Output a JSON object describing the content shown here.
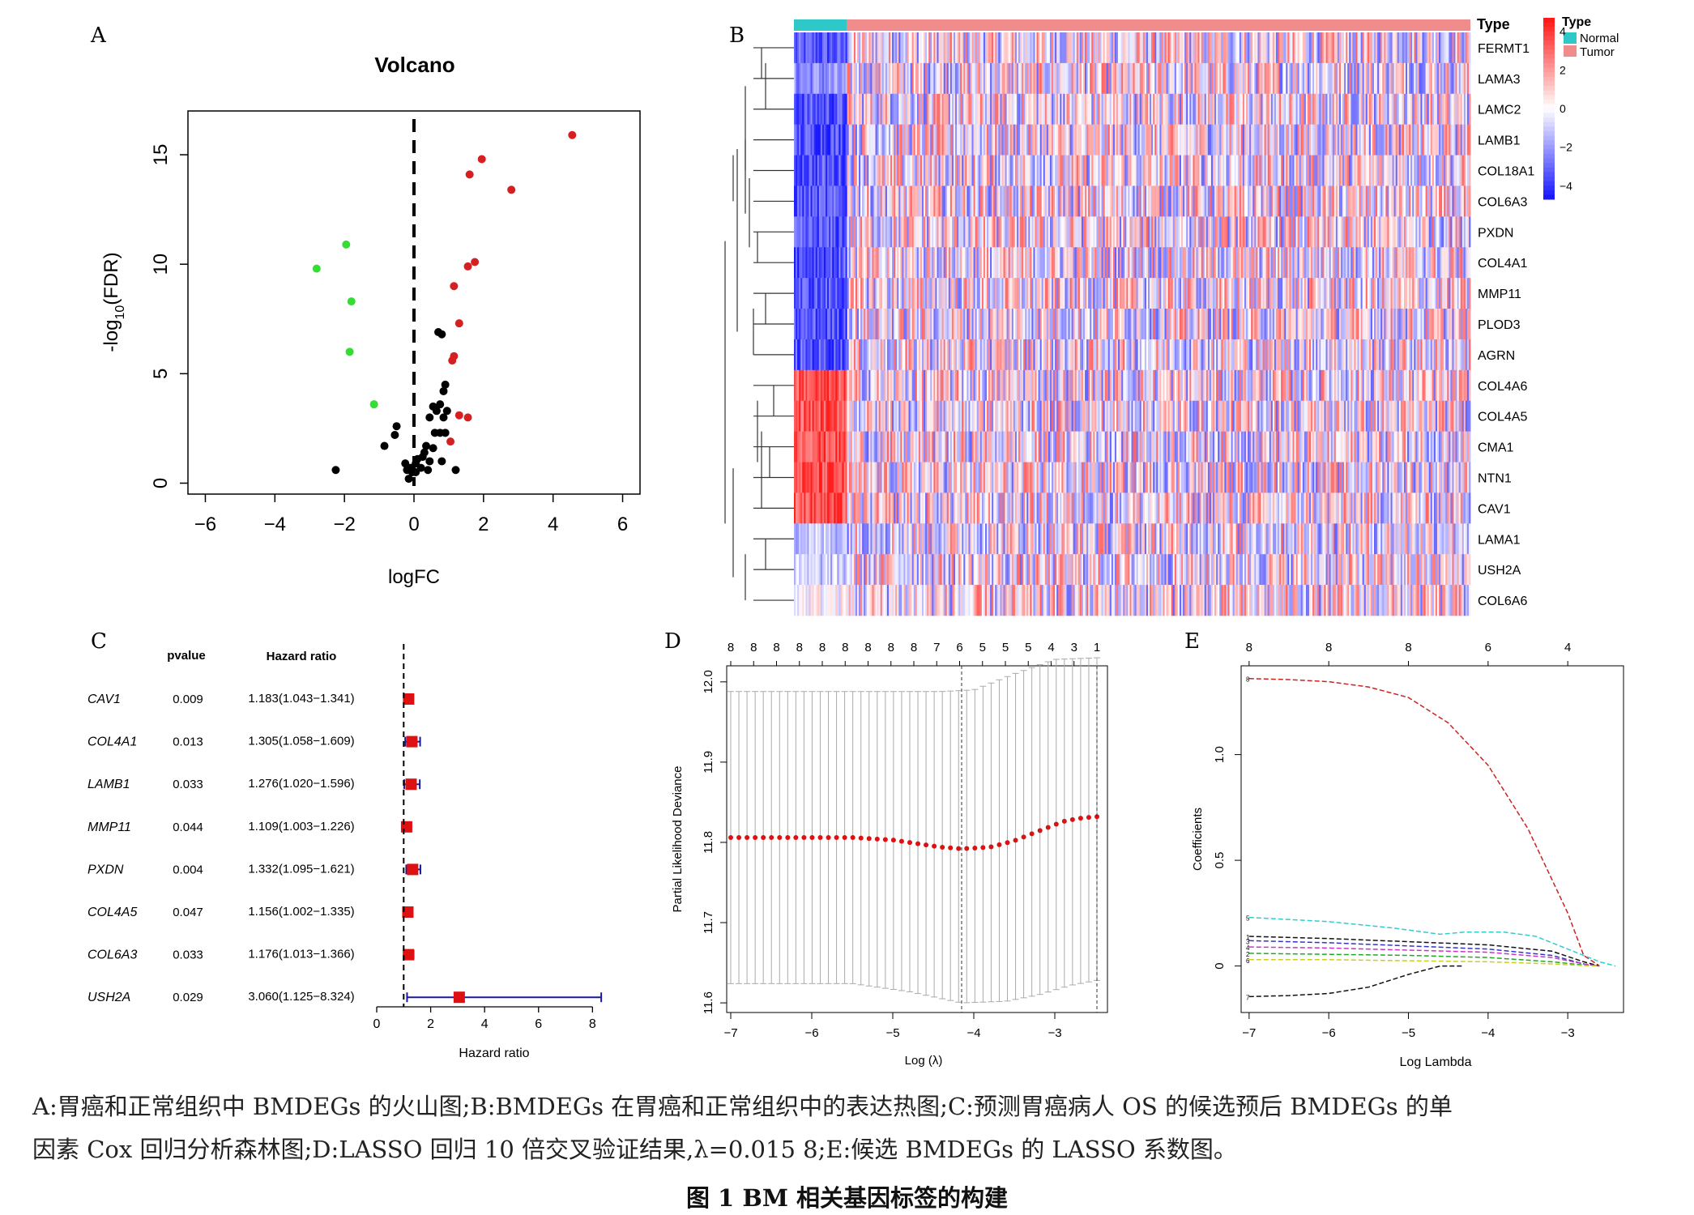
{
  "panels": {
    "A": "A",
    "B": "B",
    "C": "C",
    "D": "D",
    "E": "E"
  },
  "caption": {
    "line1": "A:胃癌和正常组织中 BMDEGs 的火山图;B:BMDEGs 在胃癌和正常组织中的表达热图;C:预测胃癌病人 OS 的候选预后 BMDEGs 的单",
    "line2": "因素 Cox 回归分析森林图;D:LASSO 回归 10 倍交叉验证结果,λ=0.015 8;E:候选 BMDEGs 的 LASSO 系数图。",
    "title": "图 1   BM 相关基因标签的构建"
  },
  "colors": {
    "up": "#d42020",
    "down": "#33dd33",
    "ns": "#000000",
    "normal": "#2ec8c8",
    "tumor": "#f08c8c",
    "heat_high": "#ff1a1a",
    "heat_low": "#1a1aff",
    "cvpoint": "#dd1111",
    "forest_box": "#dd1111",
    "forest_line": "#1a1a99"
  },
  "chart_data": [
    {
      "id": "A",
      "type": "scatter",
      "title": "Volcano",
      "xlabel": "logFC",
      "ylabel": "-log10(FDR)",
      "ylabel_parts": {
        "pre": "-log",
        "sub": "10",
        "post": "(FDR)"
      },
      "xlim": [
        -6.5,
        6.5
      ],
      "ylim": [
        -0.5,
        17
      ],
      "xticks": [
        -6,
        -4,
        -2,
        0,
        2,
        4,
        6
      ],
      "yticks": [
        0,
        5,
        10,
        15
      ],
      "xtick_labels": [
        "−6",
        "−4",
        "−2",
        "0",
        "2",
        "4",
        "6"
      ],
      "ytick_labels": [
        "0",
        "5",
        "10",
        "15"
      ],
      "vline": 0,
      "series": [
        {
          "group": "up",
          "points": [
            [
              4.55,
              15.9
            ],
            [
              1.95,
              14.8
            ],
            [
              1.6,
              14.1
            ],
            [
              2.8,
              13.4
            ],
            [
              1.75,
              10.1
            ],
            [
              1.55,
              9.9
            ],
            [
              1.15,
              9.0
            ],
            [
              1.3,
              7.3
            ],
            [
              1.15,
              5.8
            ],
            [
              1.1,
              5.6
            ],
            [
              1.3,
              3.1
            ],
            [
              1.55,
              3.0
            ],
            [
              1.05,
              1.9
            ]
          ]
        },
        {
          "group": "down",
          "points": [
            [
              -1.95,
              10.9
            ],
            [
              -2.8,
              9.8
            ],
            [
              -1.8,
              8.3
            ],
            [
              -1.85,
              6.0
            ],
            [
              -1.15,
              3.6
            ]
          ]
        },
        {
          "group": "ns",
          "points": [
            [
              0.7,
              6.9
            ],
            [
              0.8,
              6.8
            ],
            [
              0.9,
              4.5
            ],
            [
              0.85,
              4.2
            ],
            [
              0.75,
              3.6
            ],
            [
              0.55,
              3.5
            ],
            [
              0.65,
              3.3
            ],
            [
              0.95,
              3.3
            ],
            [
              0.45,
              3.0
            ],
            [
              0.85,
              3.0
            ],
            [
              -0.5,
              2.6
            ],
            [
              -0.55,
              2.2
            ],
            [
              0.6,
              2.3
            ],
            [
              0.75,
              2.3
            ],
            [
              0.9,
              2.3
            ],
            [
              -0.85,
              1.7
            ],
            [
              0.35,
              1.7
            ],
            [
              0.55,
              1.6
            ],
            [
              0.3,
              1.4
            ],
            [
              0.25,
              1.2
            ],
            [
              0.1,
              1.1
            ],
            [
              0.45,
              1.0
            ],
            [
              0.8,
              1.0
            ],
            [
              -0.25,
              0.9
            ],
            [
              0.05,
              0.9
            ],
            [
              -0.1,
              0.7
            ],
            [
              0.2,
              0.7
            ],
            [
              -0.2,
              0.6
            ],
            [
              0.4,
              0.6
            ],
            [
              -0.05,
              0.5
            ],
            [
              0.05,
              0.5
            ],
            [
              1.2,
              0.6
            ],
            [
              -2.25,
              0.6
            ],
            [
              -0.15,
              0.2
            ]
          ]
        }
      ]
    },
    {
      "id": "B",
      "type": "heatmap",
      "genes": [
        "FERMT1",
        "LAMA3",
        "LAMC2",
        "LAMB1",
        "COL18A1",
        "COL6A3",
        "PXDN",
        "COL4A1",
        "MMP11",
        "PLOD3",
        "AGRN",
        "COL4A6",
        "COL4A5",
        "CMA1",
        "NTN1",
        "CAV1",
        "LAMA1",
        "USH2A",
        "COL6A6"
      ],
      "annotation_title": "Type",
      "legend_title": "Type",
      "legend": [
        "Normal",
        "Tumor"
      ],
      "scale_ticks": [
        4,
        2,
        0,
        -2,
        -4
      ],
      "scale_tick_labels": [
        "4",
        "2",
        "0",
        "−2",
        "−4"
      ],
      "n_normal": 32,
      "n_tumor": 375,
      "normal_bias": [
        -3,
        -2,
        -3,
        -3,
        -3,
        -3,
        -3,
        -3,
        -3,
        -3,
        -3,
        3,
        3,
        3,
        3,
        3,
        -1,
        -1,
        0
      ]
    },
    {
      "id": "C",
      "type": "forest",
      "header_pvalue": "pvalue",
      "header_hr": "Hazard ratio",
      "xlabel": "Hazard ratio",
      "xlim": [
        0,
        8.5
      ],
      "xticks": [
        0,
        2,
        4,
        6,
        8
      ],
      "xtick_labels": [
        "0",
        "2",
        "4",
        "6",
        "8"
      ],
      "ref": 1,
      "rows": [
        {
          "gene": "CAV1",
          "pvalue": "0.009",
          "hr_text": "1.183(1.043−1.341)",
          "hr": 1.183,
          "lo": 1.043,
          "hi": 1.341
        },
        {
          "gene": "COL4A1",
          "pvalue": "0.013",
          "hr_text": "1.305(1.058−1.609)",
          "hr": 1.305,
          "lo": 1.058,
          "hi": 1.609
        },
        {
          "gene": "LAMB1",
          "pvalue": "0.033",
          "hr_text": "1.276(1.020−1.596)",
          "hr": 1.276,
          "lo": 1.02,
          "hi": 1.596
        },
        {
          "gene": "MMP11",
          "pvalue": "0.044",
          "hr_text": "1.109(1.003−1.226)",
          "hr": 1.109,
          "lo": 1.003,
          "hi": 1.226
        },
        {
          "gene": "PXDN",
          "pvalue": "0.004",
          "hr_text": "1.332(1.095−1.621)",
          "hr": 1.332,
          "lo": 1.095,
          "hi": 1.621
        },
        {
          "gene": "COL4A5",
          "pvalue": "0.047",
          "hr_text": "1.156(1.002−1.335)",
          "hr": 1.156,
          "lo": 1.002,
          "hi": 1.335
        },
        {
          "gene": "COL6A3",
          "pvalue": "0.033",
          "hr_text": "1.176(1.013−1.366)",
          "hr": 1.176,
          "lo": 1.013,
          "hi": 1.366
        },
        {
          "gene": "USH2A",
          "pvalue": "0.029",
          "hr_text": "3.060(1.125−8.324)",
          "hr": 3.06,
          "lo": 1.125,
          "hi": 8.324
        }
      ]
    },
    {
      "id": "D",
      "type": "line",
      "xlabel": "Log (λ)",
      "ylabel": "Partial Likelihood Deviance",
      "xlim": [
        -7.05,
        -2.35
      ],
      "ylim": [
        11.588,
        12.02
      ],
      "xticks": [
        -7,
        -6,
        -5,
        -4,
        -3
      ],
      "xtick_labels": [
        "−7",
        "−6",
        "−5",
        "−4",
        "−3"
      ],
      "yticks": [
        11.6,
        11.7,
        11.8,
        11.9,
        12.0
      ],
      "ytick_labels": [
        "11.6",
        "11.7",
        "11.8",
        "11.9",
        "12.0"
      ],
      "top_labels": [
        "8",
        "8",
        "8",
        "8",
        "8",
        "8",
        "8",
        "8",
        "8",
        "7",
        "6",
        "5",
        "5",
        "5",
        "4",
        "3",
        "1"
      ],
      "vlines": [
        -4.15,
        -2.48
      ],
      "x_range": [
        -7.0,
        -2.48
      ],
      "n_points": 46,
      "curve": [
        [
          -7.0,
          11.806
        ],
        [
          -5.5,
          11.806
        ],
        [
          -5.0,
          11.803
        ],
        [
          -4.4,
          11.794
        ],
        [
          -4.15,
          11.792
        ],
        [
          -3.8,
          11.794
        ],
        [
          -3.5,
          11.802
        ],
        [
          -3.2,
          11.814
        ],
        [
          -2.9,
          11.826
        ],
        [
          -2.7,
          11.83
        ],
        [
          -2.48,
          11.832
        ]
      ],
      "upper": [
        [
          -7.0,
          11.988
        ],
        [
          -4.4,
          11.988
        ],
        [
          -4.0,
          11.99
        ],
        [
          -3.5,
          12.01
        ],
        [
          -3.0,
          12.028
        ],
        [
          -2.48,
          12.03
        ]
      ],
      "lower": [
        [
          -7.0,
          11.624
        ],
        [
          -5.5,
          11.624
        ],
        [
          -4.8,
          11.614
        ],
        [
          -4.15,
          11.6
        ],
        [
          -3.6,
          11.602
        ],
        [
          -3.2,
          11.61
        ],
        [
          -2.8,
          11.622
        ],
        [
          -2.48,
          11.628
        ]
      ]
    },
    {
      "id": "E",
      "type": "line",
      "xlabel": "Log Lambda",
      "ylabel": "Coefficients",
      "xlim": [
        -7.1,
        -2.3
      ],
      "ylim": [
        -0.22,
        1.42
      ],
      "xticks": [
        -7,
        -6,
        -5,
        -4,
        -3
      ],
      "xtick_labels": [
        "−7",
        "−6",
        "−5",
        "−4",
        "−3"
      ],
      "yticks": [
        0,
        0.5,
        1.0
      ],
      "ytick_labels": [
        "0",
        "0.5",
        "1.0"
      ],
      "top_labels": [
        "8",
        "8",
        "8",
        "6",
        "4"
      ],
      "top_ticks": [
        -7,
        -6,
        -5,
        -4,
        -3
      ],
      "series": [
        {
          "color": "#cc2222",
          "label": "8",
          "points": [
            [
              -7,
              1.36
            ],
            [
              -6.5,
              1.355
            ],
            [
              -6,
              1.345
            ],
            [
              -5.5,
              1.32
            ],
            [
              -5,
              1.27
            ],
            [
              -4.5,
              1.15
            ],
            [
              -4,
              0.95
            ],
            [
              -3.5,
              0.65
            ],
            [
              -3,
              0.25
            ],
            [
              -2.8,
              0.05
            ],
            [
              -2.6,
              0
            ]
          ]
        },
        {
          "color": "#33cccc",
          "label": "5",
          "points": [
            [
              -7,
              0.23
            ],
            [
              -6,
              0.21
            ],
            [
              -5.2,
              0.18
            ],
            [
              -4.6,
              0.15
            ],
            [
              -4.3,
              0.16
            ],
            [
              -3.8,
              0.16
            ],
            [
              -3.4,
              0.14
            ],
            [
              -3,
              0.08
            ],
            [
              -2.6,
              0.02
            ],
            [
              -2.4,
              0
            ]
          ]
        },
        {
          "color": "#111111",
          "label": "1",
          "points": [
            [
              -7,
              0.14
            ],
            [
              -6,
              0.13
            ],
            [
              -5,
              0.115
            ],
            [
              -4,
              0.1
            ],
            [
              -3.2,
              0.07
            ],
            [
              -2.8,
              0.02
            ],
            [
              -2.6,
              0
            ]
          ]
        },
        {
          "color": "#3333cc",
          "label": "3",
          "points": [
            [
              -7,
              0.12
            ],
            [
              -6,
              0.11
            ],
            [
              -5,
              0.095
            ],
            [
              -4,
              0.08
            ],
            [
              -3.2,
              0.05
            ],
            [
              -2.8,
              0.01
            ],
            [
              -2.6,
              0
            ]
          ]
        },
        {
          "color": "#cc33cc",
          "label": "4",
          "points": [
            [
              -7,
              0.09
            ],
            [
              -6,
              0.085
            ],
            [
              -5,
              0.075
            ],
            [
              -4,
              0.065
            ],
            [
              -3.2,
              0.04
            ],
            [
              -2.8,
              0.01
            ],
            [
              -2.6,
              0
            ]
          ]
        },
        {
          "color": "#22aa22",
          "label": "2",
          "points": [
            [
              -7,
              0.06
            ],
            [
              -6,
              0.055
            ],
            [
              -5,
              0.05
            ],
            [
              -4,
              0.04
            ],
            [
              -3.2,
              0.02
            ],
            [
              -2.8,
              0.005
            ],
            [
              -2.6,
              0
            ]
          ]
        },
        {
          "color": "#cccc22",
          "label": "6",
          "points": [
            [
              -7,
              0.03
            ],
            [
              -6,
              0.03
            ],
            [
              -5,
              0.025
            ],
            [
              -4,
              0.02
            ],
            [
              -3.2,
              0.01
            ],
            [
              -2.8,
              0.002
            ],
            [
              -2.6,
              0
            ]
          ]
        },
        {
          "color": "#111111",
          "label": "7",
          "points": [
            [
              -7,
              -0.145
            ],
            [
              -6.5,
              -0.14
            ],
            [
              -6,
              -0.13
            ],
            [
              -5.5,
              -0.1
            ],
            [
              -5,
              -0.04
            ],
            [
              -4.6,
              0
            ],
            [
              -4.3,
              0
            ]
          ]
        }
      ]
    }
  ]
}
